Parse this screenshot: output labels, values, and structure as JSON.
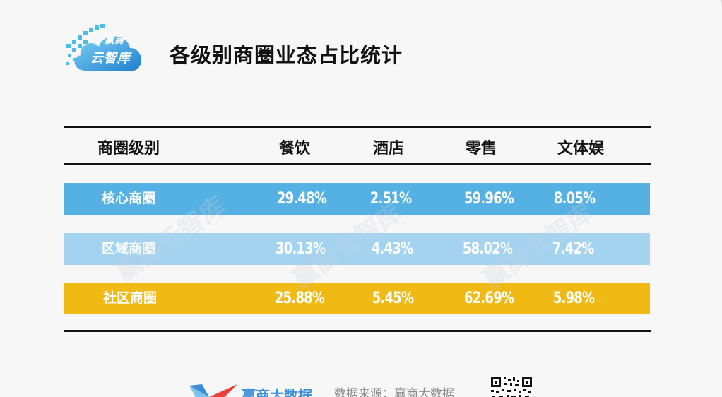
{
  "logo": {
    "line1": "赢商",
    "line2": "云智库"
  },
  "title": "各级别商圈业态占比统计",
  "table": {
    "headers": [
      "商圈级别",
      "餐饮",
      "酒店",
      "零售",
      "文体娱"
    ],
    "rows": [
      {
        "label": "核心商圈",
        "values": [
          "29.48%",
          "2.51%",
          "59.96%",
          "8.05%"
        ],
        "color": "#55b1e3"
      },
      {
        "label": "区域商圈",
        "values": [
          "30.13%",
          "4.43%",
          "58.02%",
          "7.42%"
        ],
        "color": "#a3d3ef"
      },
      {
        "label": "社区商圈",
        "values": [
          "25.88%",
          "5.45%",
          "62.69%",
          "5.98%"
        ],
        "color": "#f0b913"
      }
    ]
  },
  "watermark": "赢商云智库",
  "footer": {
    "brand": "赢商大数据",
    "source": "数据来源：赢商大数据"
  }
}
